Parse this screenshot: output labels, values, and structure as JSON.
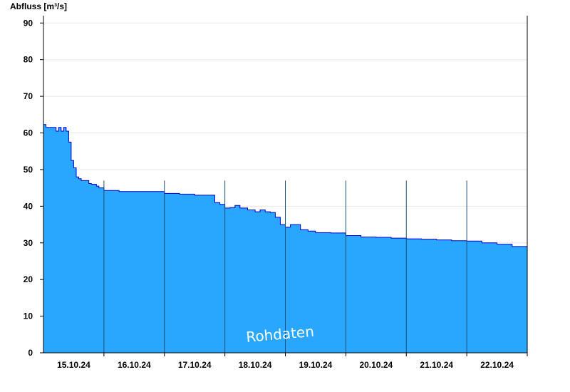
{
  "chart_data": {
    "type": "area",
    "ylabel": "Abfluss [m³/s]",
    "ylim": [
      0,
      92
    ],
    "yticks": [
      0,
      10,
      20,
      30,
      40,
      50,
      60,
      70,
      80,
      90
    ],
    "xlim": [
      "2024-10-14T12:00",
      "2024-10-22T12:00"
    ],
    "xticks": [
      {
        "label": "15.10.24",
        "x": "2024-10-15T00:00"
      },
      {
        "label": "16.10.24",
        "x": "2024-10-16T00:00"
      },
      {
        "label": "17.10.24",
        "x": "2024-10-17T00:00"
      },
      {
        "label": "18.10.24",
        "x": "2024-10-18T00:00"
      },
      {
        "label": "19.10.24",
        "x": "2024-10-19T00:00"
      },
      {
        "label": "20.10.24",
        "x": "2024-10-20T00:00"
      },
      {
        "label": "21.10.24",
        "x": "2024-10-21T00:00"
      },
      {
        "label": "22.10.24",
        "x": "2024-10-22T00:00"
      }
    ],
    "day_separators": [
      "2024-10-15T12:00",
      "2024-10-16T12:00",
      "2024-10-17T12:00",
      "2024-10-18T12:00",
      "2024-10-19T12:00",
      "2024-10-20T12:00",
      "2024-10-21T12:00",
      "2024-10-22T12:00"
    ],
    "grid": true,
    "watermark": "Rohdaten",
    "colors": {
      "fill": "#29a7ff",
      "line": "#0000cc",
      "separator": "#1a4f7a",
      "grid": "#e8e8e8"
    },
    "series": [
      {
        "x": [
          "2024-10-14T12:00",
          "2024-10-14T13:00",
          "2024-10-14T14:00",
          "2024-10-14T15:00",
          "2024-10-14T16:00",
          "2024-10-14T17:00",
          "2024-10-14T18:00",
          "2024-10-14T19:00",
          "2024-10-14T20:00",
          "2024-10-14T21:00",
          "2024-10-14T22:00",
          "2024-10-14T23:00",
          "2024-10-15T00:00",
          "2024-10-15T01:00",
          "2024-10-15T02:00",
          "2024-10-15T03:00",
          "2024-10-15T04:00",
          "2024-10-15T05:00",
          "2024-10-15T06:00",
          "2024-10-15T07:00",
          "2024-10-15T08:00",
          "2024-10-15T09:00",
          "2024-10-15T10:00",
          "2024-10-15T11:00",
          "2024-10-15T12:00",
          "2024-10-15T18:00",
          "2024-10-16T00:00",
          "2024-10-16T12:00",
          "2024-10-16T18:00",
          "2024-10-17T00:00",
          "2024-10-17T06:00",
          "2024-10-17T08:00",
          "2024-10-17T10:00",
          "2024-10-17T12:00",
          "2024-10-17T14:00",
          "2024-10-17T16:00",
          "2024-10-17T18:00",
          "2024-10-17T21:00",
          "2024-10-18T00:00",
          "2024-10-18T02:00",
          "2024-10-18T04:00",
          "2024-10-18T06:00",
          "2024-10-18T08:00",
          "2024-10-18T10:00",
          "2024-10-18T12:00",
          "2024-10-18T14:00",
          "2024-10-18T18:00",
          "2024-10-18T21:00",
          "2024-10-19T00:00",
          "2024-10-19T06:00",
          "2024-10-19T12:00",
          "2024-10-19T18:00",
          "2024-10-20T00:00",
          "2024-10-20T06:00",
          "2024-10-20T12:00",
          "2024-10-20T18:00",
          "2024-10-21T00:00",
          "2024-10-21T06:00",
          "2024-10-21T12:00",
          "2024-10-21T18:00",
          "2024-10-22T00:00",
          "2024-10-22T06:00",
          "2024-10-22T12:00"
        ],
        "y": [
          62.3,
          61.5,
          61.5,
          61.5,
          61.5,
          60.5,
          61.5,
          60.5,
          61.5,
          60.5,
          57.5,
          52.5,
          50.5,
          48.0,
          47.5,
          47.0,
          47.0,
          47.0,
          46.2,
          46.0,
          46.0,
          45.5,
          45.0,
          45.0,
          44.3,
          44.0,
          44.0,
          43.5,
          43.3,
          43.0,
          43.0,
          41.0,
          40.5,
          39.5,
          39.6,
          40.2,
          39.5,
          39.0,
          38.5,
          39.0,
          38.5,
          38.3,
          37.0,
          35.0,
          34.3,
          35.0,
          33.6,
          33.2,
          32.8,
          32.7,
          32.0,
          31.6,
          31.5,
          31.3,
          31.1,
          31.0,
          30.8,
          30.6,
          30.5,
          30.0,
          29.6,
          29.0,
          28.9
        ]
      }
    ]
  }
}
